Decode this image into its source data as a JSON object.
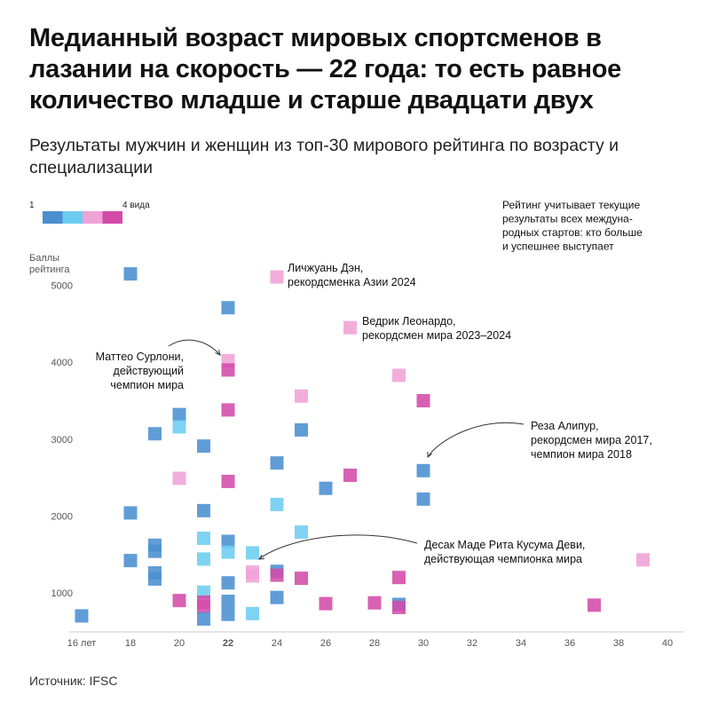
{
  "title": "Медианный возраст мировых спортсменов в лазании на скорость — 22 года: то есть равное количество младше и старше двадцати двух",
  "subtitle": "Результаты мужчин и женщин из топ-30 мирового рейтинга по возрасту и специализации",
  "source": "Источник: IFSC",
  "colors": {
    "spec1": "#4a8fd1",
    "spec2": "#6dcdf0",
    "spec3": "#f0a3d6",
    "spec4": "#d34ba8"
  },
  "legend": {
    "min_label": "1",
    "max_label": "4 вида",
    "categories": [
      "1",
      "2",
      "3",
      "4"
    ]
  },
  "note": [
    "Рейтинг учитывает текущие",
    "результаты всех междуна-",
    "родных стартов: кто больше",
    "и успешнее выступает"
  ],
  "chart_data": {
    "type": "scatter",
    "xlim": [
      15,
      40
    ],
    "ylim": [
      500,
      5300
    ],
    "x_ticks": [
      {
        "v": 16,
        "label": "16 лет"
      },
      {
        "v": 18,
        "label": "18"
      },
      {
        "v": 20,
        "label": "20"
      },
      {
        "v": 22,
        "label": "22"
      },
      {
        "v": 24,
        "label": "24"
      },
      {
        "v": 26,
        "label": "26"
      },
      {
        "v": 28,
        "label": "28"
      },
      {
        "v": 30,
        "label": "30"
      },
      {
        "v": 32,
        "label": "32"
      },
      {
        "v": 34,
        "label": "34"
      },
      {
        "v": 36,
        "label": "36"
      },
      {
        "v": 38,
        "label": "38"
      },
      {
        "v": 40,
        "label": "40"
      }
    ],
    "y_ticks": [
      {
        "v": 1000,
        "label": "1000"
      },
      {
        "v": 2000,
        "label": "2000"
      },
      {
        "v": 3000,
        "label": "3000"
      },
      {
        "v": 4000,
        "label": "4000"
      },
      {
        "v": 5000,
        "label": "5000"
      }
    ],
    "ylabel": [
      "Баллы",
      "рейтинга"
    ],
    "highlight_x": 22,
    "points": [
      {
        "age": 16,
        "score": 700,
        "spec": 1
      },
      {
        "age": 18,
        "score": 5150,
        "spec": 1
      },
      {
        "age": 18,
        "score": 2040,
        "spec": 1
      },
      {
        "age": 18,
        "score": 1420,
        "spec": 1
      },
      {
        "age": 19,
        "score": 3070,
        "spec": 1
      },
      {
        "age": 19,
        "score": 1620,
        "spec": 1
      },
      {
        "age": 19,
        "score": 1540,
        "spec": 1
      },
      {
        "age": 19,
        "score": 1260,
        "spec": 1
      },
      {
        "age": 19,
        "score": 1180,
        "spec": 1
      },
      {
        "age": 20,
        "score": 3320,
        "spec": 1
      },
      {
        "age": 20,
        "score": 3160,
        "spec": 2
      },
      {
        "age": 20,
        "score": 2490,
        "spec": 3
      },
      {
        "age": 20,
        "score": 900,
        "spec": 4
      },
      {
        "age": 21,
        "score": 2910,
        "spec": 1
      },
      {
        "age": 21,
        "score": 2070,
        "spec": 1
      },
      {
        "age": 21,
        "score": 1710,
        "spec": 2
      },
      {
        "age": 21,
        "score": 1440,
        "spec": 2
      },
      {
        "age": 21,
        "score": 1010,
        "spec": 2
      },
      {
        "age": 21,
        "score": 880,
        "spec": 4
      },
      {
        "age": 21,
        "score": 820,
        "spec": 4
      },
      {
        "age": 21,
        "score": 660,
        "spec": 1
      },
      {
        "age": 22,
        "score": 4710,
        "spec": 1
      },
      {
        "age": 22,
        "score": 4020,
        "spec": 3
      },
      {
        "age": 22,
        "score": 3900,
        "spec": 4
      },
      {
        "age": 22,
        "score": 3380,
        "spec": 4
      },
      {
        "age": 22,
        "score": 2450,
        "spec": 4
      },
      {
        "age": 22,
        "score": 1670,
        "spec": 1
      },
      {
        "age": 22,
        "score": 1530,
        "spec": 2
      },
      {
        "age": 22,
        "score": 1130,
        "spec": 1
      },
      {
        "age": 22,
        "score": 890,
        "spec": 1
      },
      {
        "age": 22,
        "score": 720,
        "spec": 1
      },
      {
        "age": 23,
        "score": 1520,
        "spec": 2
      },
      {
        "age": 23,
        "score": 1270,
        "spec": 3
      },
      {
        "age": 23,
        "score": 1220,
        "spec": 3
      },
      {
        "age": 23,
        "score": 730,
        "spec": 2
      },
      {
        "age": 24,
        "score": 5110,
        "spec": 3
      },
      {
        "age": 24,
        "score": 2690,
        "spec": 1
      },
      {
        "age": 24,
        "score": 2150,
        "spec": 2
      },
      {
        "age": 24,
        "score": 1280,
        "spec": 1
      },
      {
        "age": 24,
        "score": 1230,
        "spec": 4
      },
      {
        "age": 24,
        "score": 940,
        "spec": 1
      },
      {
        "age": 25,
        "score": 3560,
        "spec": 3
      },
      {
        "age": 25,
        "score": 3120,
        "spec": 1
      },
      {
        "age": 25,
        "score": 1790,
        "spec": 2
      },
      {
        "age": 25,
        "score": 1190,
        "spec": 4
      },
      {
        "age": 26,
        "score": 2360,
        "spec": 1
      },
      {
        "age": 26,
        "score": 860,
        "spec": 4
      },
      {
        "age": 27,
        "score": 4450,
        "spec": 3
      },
      {
        "age": 27,
        "score": 2530,
        "spec": 4
      },
      {
        "age": 28,
        "score": 870,
        "spec": 4
      },
      {
        "age": 29,
        "score": 3830,
        "spec": 3
      },
      {
        "age": 29,
        "score": 1200,
        "spec": 4
      },
      {
        "age": 29,
        "score": 850,
        "spec": 1
      },
      {
        "age": 29,
        "score": 810,
        "spec": 4
      },
      {
        "age": 30,
        "score": 3500,
        "spec": 4
      },
      {
        "age": 30,
        "score": 2590,
        "spec": 1
      },
      {
        "age": 30,
        "score": 2220,
        "spec": 1
      },
      {
        "age": 37,
        "score": 840,
        "spec": 4
      },
      {
        "age": 39,
        "score": 1430,
        "spec": 3
      }
    ],
    "annotations": [
      {
        "lines": [
          "Личжуань Дэн,",
          "рекордсменка Азии 2024"
        ]
      },
      {
        "lines": [
          "Ведрик Леонардо,",
          "рекордсмен мира 2023–2024"
        ]
      },
      {
        "lines": [
          "Маттео Сурлони,",
          "действующий",
          "чемпион мира"
        ]
      },
      {
        "lines": [
          "Реза Алипур,",
          "рекордсмен мира 2017,",
          "чемпион мира 2018"
        ]
      },
      {
        "lines": [
          "Десак Маде Рита Кусума Деви,",
          "действующая чемпионка мира"
        ]
      }
    ]
  }
}
